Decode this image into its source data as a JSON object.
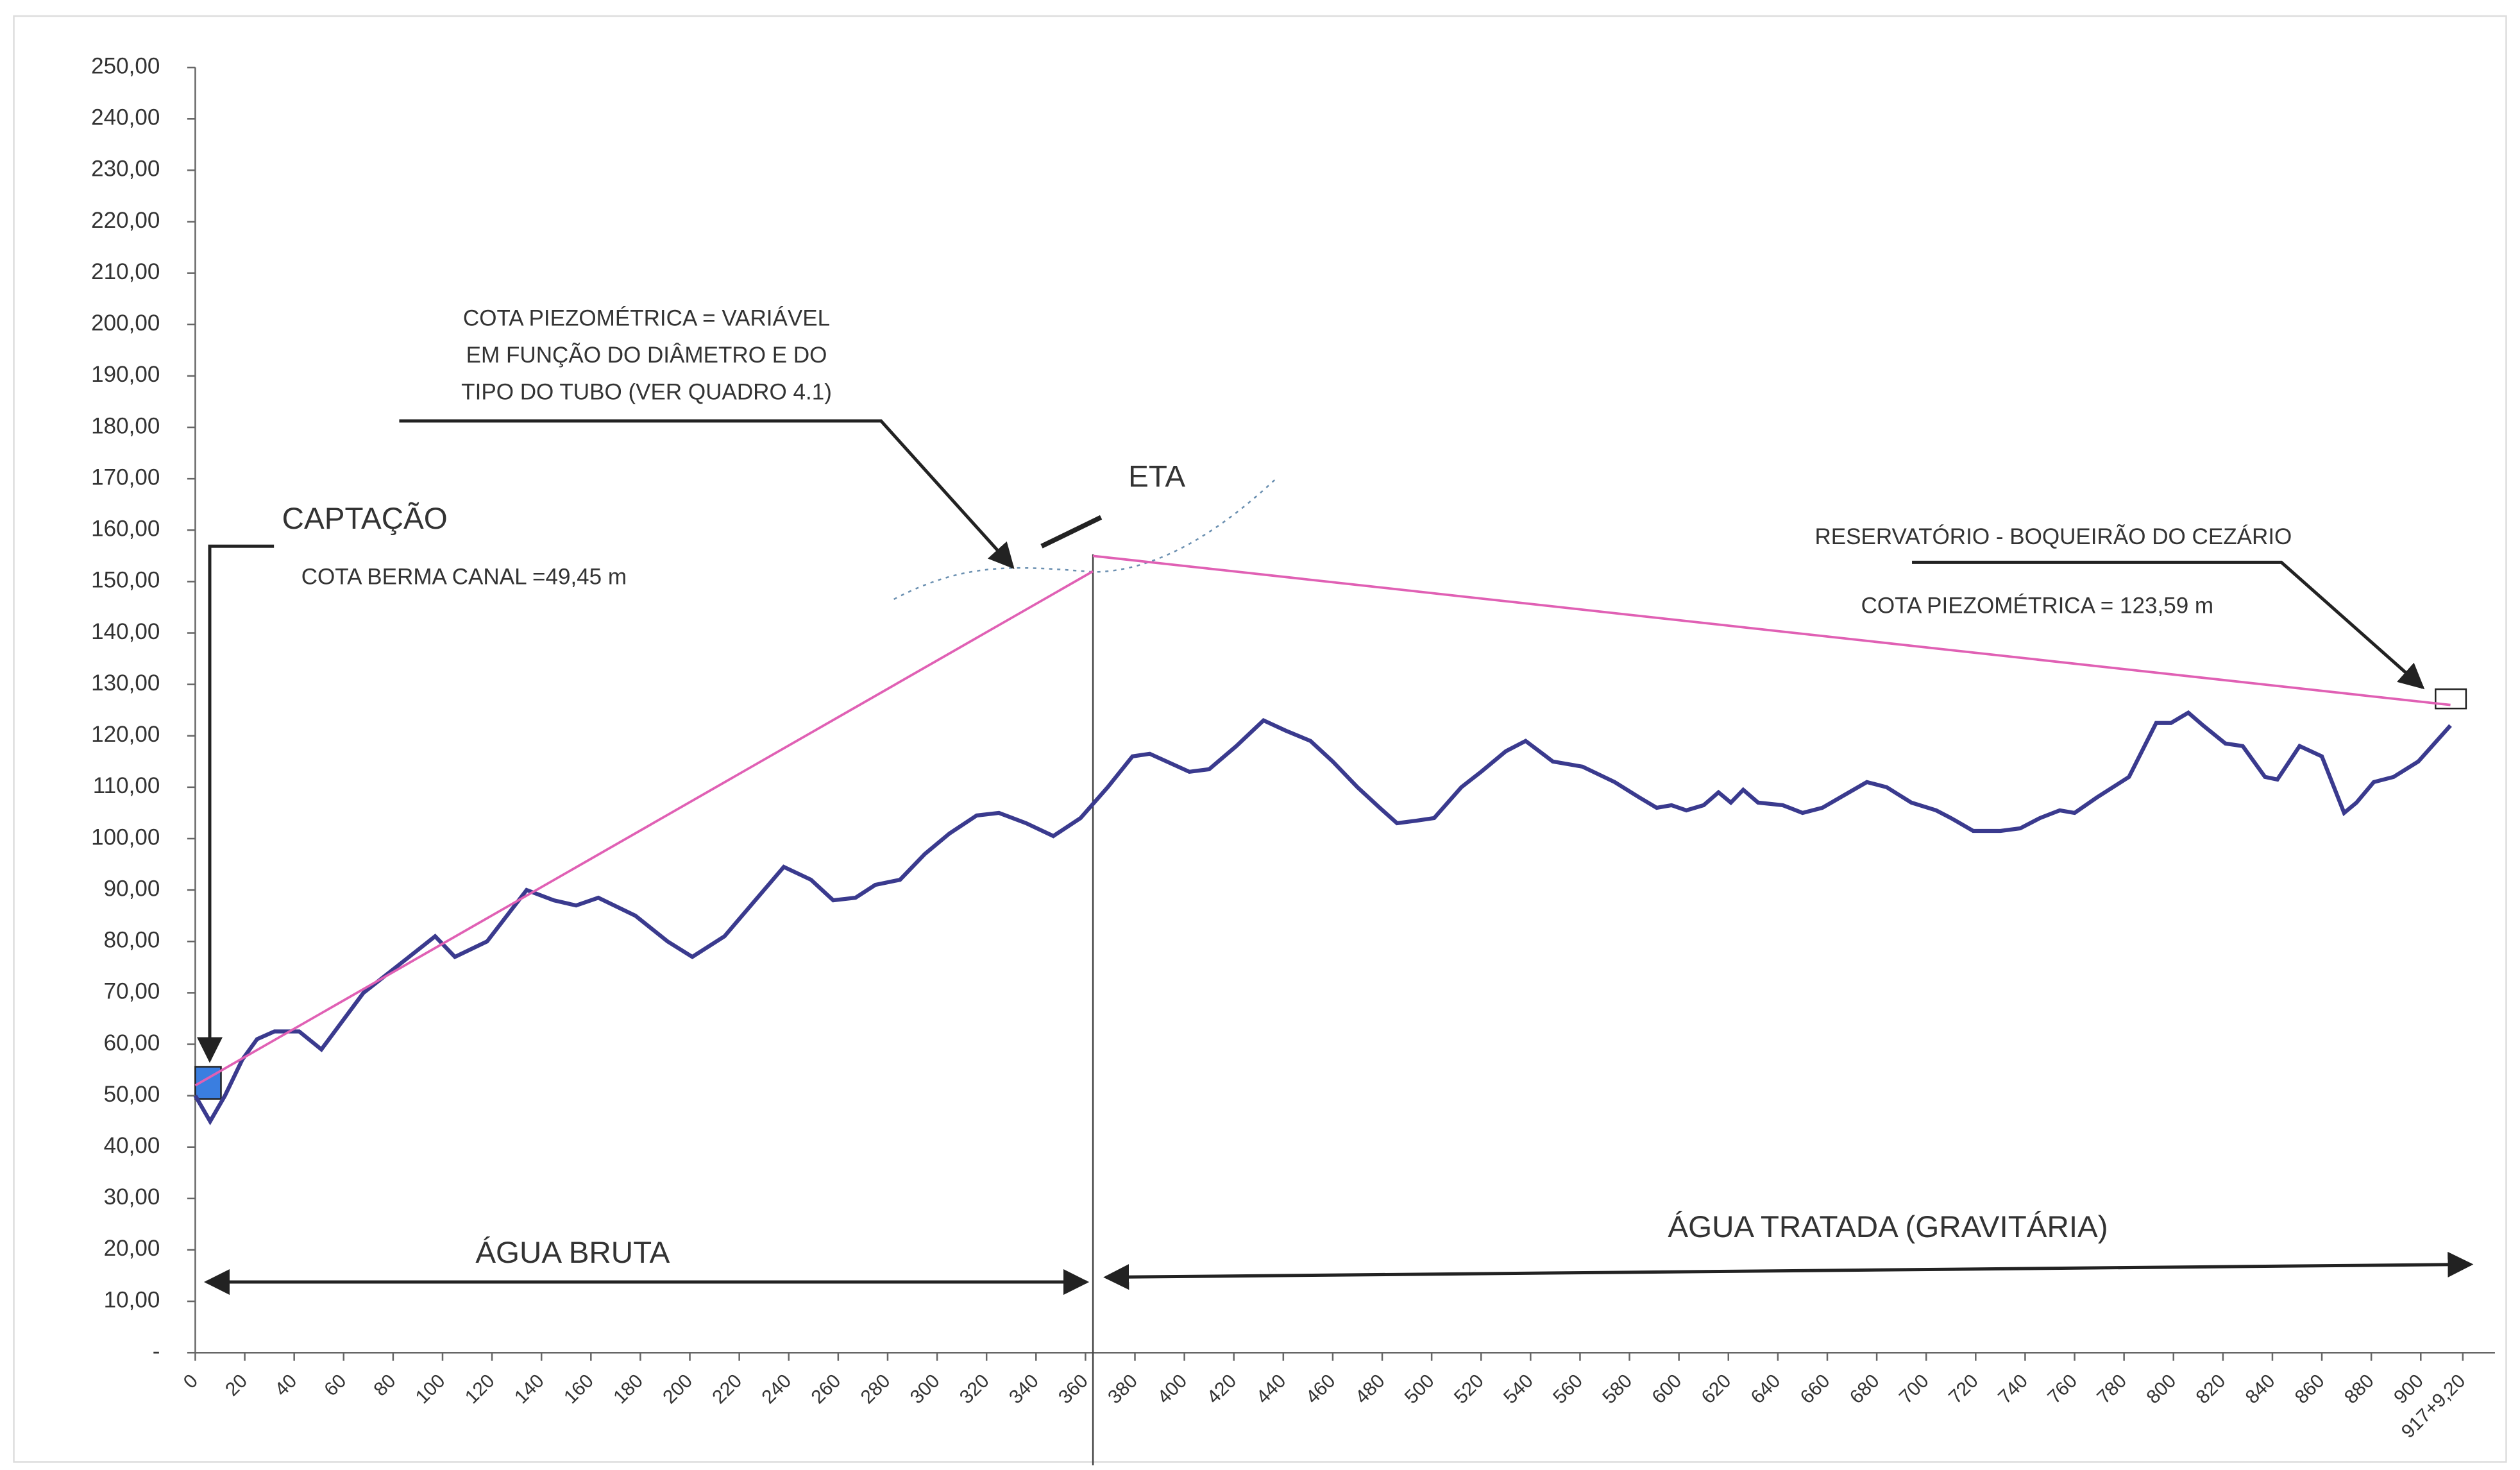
{
  "chart_data": {
    "type": "line",
    "xlim": [
      0,
      930
    ],
    "ylim": [
      0,
      250
    ],
    "yticks": [
      {
        "value": 0,
        "label": "-"
      },
      {
        "value": 10,
        "label": "10,00"
      },
      {
        "value": 20,
        "label": "20,00"
      },
      {
        "value": 30,
        "label": "30,00"
      },
      {
        "value": 40,
        "label": "40,00"
      },
      {
        "value": 50,
        "label": "50,00"
      },
      {
        "value": 60,
        "label": "60,00"
      },
      {
        "value": 70,
        "label": "70,00"
      },
      {
        "value": 80,
        "label": "80,00"
      },
      {
        "value": 90,
        "label": "90,00"
      },
      {
        "value": 100,
        "label": "100,00"
      },
      {
        "value": 110,
        "label": "110,00"
      },
      {
        "value": 120,
        "label": "120,00"
      },
      {
        "value": 130,
        "label": "130,00"
      },
      {
        "value": 140,
        "label": "140,00"
      },
      {
        "value": 150,
        "label": "150,00"
      },
      {
        "value": 160,
        "label": "160,00"
      },
      {
        "value": 170,
        "label": "170,00"
      },
      {
        "value": 180,
        "label": "180,00"
      },
      {
        "value": 190,
        "label": "190,00"
      },
      {
        "value": 200,
        "label": "200,00"
      },
      {
        "value": 210,
        "label": "210,00"
      },
      {
        "value": 220,
        "label": "220,00"
      },
      {
        "value": 230,
        "label": "230,00"
      },
      {
        "value": 240,
        "label": "240,00"
      },
      {
        "value": 250,
        "label": "250,00"
      }
    ],
    "xticks": [
      0,
      20,
      40,
      60,
      80,
      100,
      120,
      140,
      160,
      180,
      200,
      220,
      240,
      260,
      280,
      300,
      320,
      340,
      360,
      380,
      400,
      420,
      440,
      460,
      480,
      500,
      520,
      540,
      560,
      580,
      600,
      620,
      640,
      660,
      680,
      700,
      720,
      740,
      760,
      780,
      800,
      820,
      840,
      860,
      880,
      900,
      {
        "value": 917,
        "label": "917+9,20"
      }
    ],
    "series": [
      {
        "color": "#3a3a8e",
        "x": [
          0,
          6,
          12,
          19,
          25,
          32,
          42,
          51,
          68,
          97,
          105,
          118,
          134,
          145,
          154,
          163,
          178,
          191,
          201,
          214,
          230,
          238,
          249,
          258,
          267,
          275,
          285,
          295,
          305,
          316,
          325,
          336,
          347,
          358,
          369,
          379,
          386,
          402,
          410,
          421,
          432,
          441,
          451,
          460,
          470,
          479,
          486,
          494,
          501,
          512,
          520,
          530,
          538,
          549,
          561,
          574,
          584,
          591,
          597,
          603,
          610,
          616,
          621,
          626,
          632,
          642,
          650,
          658,
          667,
          676,
          684,
          694,
          704,
          710,
          719,
          730,
          738,
          746,
          754,
          760,
          769,
          782,
          793,
          799,
          806,
          812,
          821,
          828,
          837,
          842,
          851,
          860,
          869,
          874,
          881,
          889,
          899,
          912
        ],
        "values": [
          50,
          45,
          50,
          57,
          61,
          62.5,
          62.5,
          59,
          70,
          81,
          77,
          80,
          90,
          88,
          87,
          88.5,
          85,
          80,
          77,
          81,
          90,
          94.5,
          92,
          88,
          88.5,
          91,
          92,
          97,
          101,
          104.5,
          105,
          103,
          100.5,
          104,
          110,
          116,
          116.5,
          113,
          113.5,
          118,
          123,
          121,
          119,
          115,
          110,
          106,
          103,
          103.5,
          104,
          110,
          113,
          117,
          119,
          115,
          114,
          111,
          108,
          106,
          106.5,
          105.5,
          106.5,
          109,
          107,
          109.5,
          107,
          106.5,
          105,
          106,
          108.5,
          111,
          110,
          107,
          105.5,
          104,
          101.5,
          101.5,
          102,
          104,
          105.5,
          105,
          108,
          112,
          122.5,
          122.5,
          124.5,
          122,
          118.5,
          118,
          112,
          111.5,
          118,
          116,
          105,
          107,
          111,
          112,
          115,
          122
        ]
      },
      {
        "color": "#e060b4",
        "x": [
          0,
          363
        ],
        "values": [
          52,
          152
        ]
      },
      {
        "color": "#e060b4",
        "x": [
          363,
          912
        ],
        "values": [
          155,
          126
        ]
      }
    ],
    "annotations": [
      "CAPTAÇÃO",
      "COTA  BERMA CANAL =49,45 m",
      "COTA PIEZOMÉTRICA = VARIÁVEL",
      "EM FUNÇÃO DO DIÂMETRO E DO",
      "TIPO DO TUBO (VER QUADRO 4.1)",
      "ETA",
      "RESERVATÓRIO - BOQUEIRÃO DO CEZÁRIO",
      "COTA PIEZOMÉTRICA = 123,59 m",
      "ÁGUA BRUTA",
      "ÁGUA TRATADA (GRAVITÁRIA)"
    ]
  }
}
